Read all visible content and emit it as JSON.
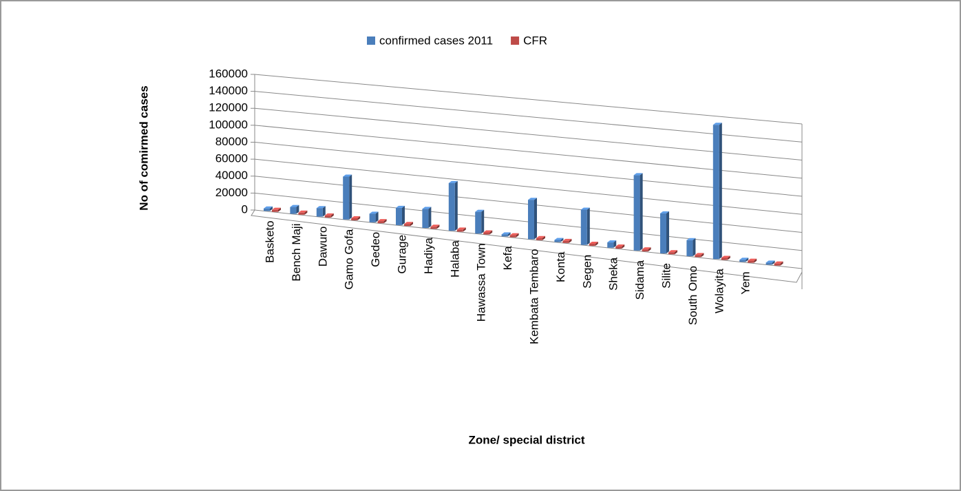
{
  "chart_data": {
    "type": "bar3d",
    "y_label": "No of comirmed cases",
    "x_label": "Zone/ special district",
    "categories": [
      "Basketo",
      "Bench Maji",
      "Dawuro",
      "Gamo Gofa",
      "Gedeo",
      "Gurage",
      "Hadiya",
      "Halaba",
      "Hawassa Town",
      "Kefa",
      "Kembata Tembaro",
      "Konta",
      "Segen",
      "Sheka",
      "Sidama",
      "Silite",
      "South Omo",
      "Wolayita",
      "Yem",
      null
    ],
    "series": [
      {
        "name": "confirmed cases 2011",
        "color": "#4a7ebb",
        "values": [
          3000,
          8000,
          10000,
          50000,
          10000,
          20000,
          22000,
          55000,
          25000,
          2000,
          45000,
          2000,
          40000,
          6000,
          85000,
          45000,
          18000,
          150000,
          1000,
          0
        ]
      },
      {
        "name": "CFR",
        "color": "#be4b48",
        "values": [
          1,
          1,
          1,
          1,
          1,
          1,
          1,
          1,
          1,
          1,
          1,
          1,
          1,
          1,
          1,
          1,
          1,
          1,
          1,
          1
        ]
      }
    ],
    "ylim": [
      0,
      160000
    ],
    "yticks": [
      0,
      20000,
      40000,
      60000,
      80000,
      100000,
      120000,
      140000,
      160000
    ],
    "grid": true,
    "legend": "top"
  }
}
